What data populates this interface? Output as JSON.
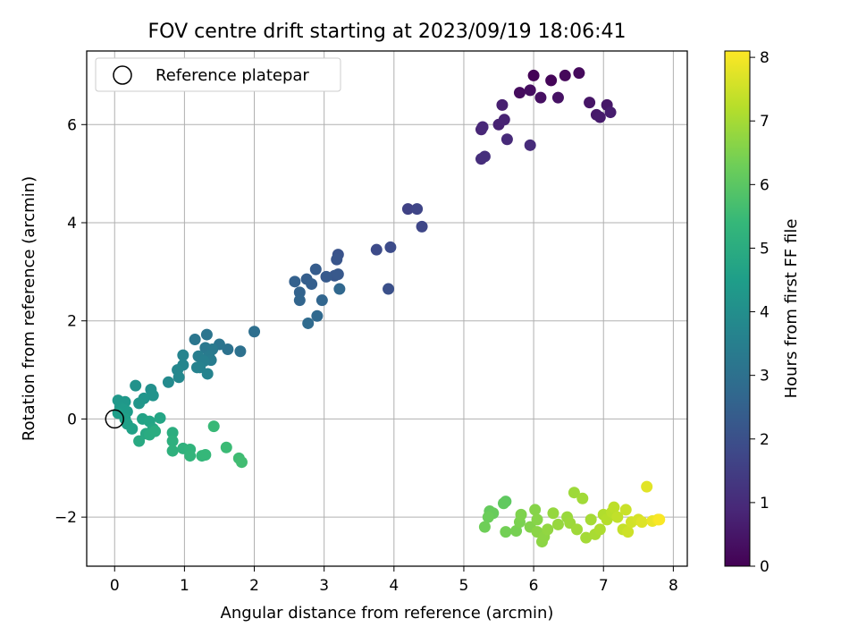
{
  "chart_data": {
    "type": "scatter",
    "title": "FOV centre drift starting at 2023/09/19 18:06:41",
    "xlabel": "Angular distance from reference (arcmin)",
    "ylabel": "Rotation from reference (arcmin)",
    "xlim": [
      -0.4,
      8.2
    ],
    "ylim": [
      -3.0,
      7.5
    ],
    "xticks": [
      "0",
      "1",
      "2",
      "3",
      "4",
      "5",
      "6",
      "7",
      "8"
    ],
    "yticks": [
      "−2",
      "0",
      "2",
      "4",
      "6"
    ],
    "grid": true,
    "legend": {
      "label": "Reference platepar",
      "placement": "top-left"
    },
    "reference_point": {
      "x": 0.0,
      "y": 0.0
    },
    "colorbar": {
      "label": "Hours from first FF file",
      "colormap": "viridis",
      "range": [
        0,
        8.1
      ],
      "ticks": [
        "0",
        "1",
        "2",
        "3",
        "4",
        "5",
        "6",
        "7",
        "8"
      ]
    },
    "colormap_stops": [
      "#440154",
      "#482878",
      "#3e4989",
      "#31688e",
      "#26828e",
      "#1f9e89",
      "#35b779",
      "#6ece58",
      "#b5de2b",
      "#fde725"
    ],
    "points": [
      {
        "x": 6.0,
        "y": 7.0,
        "c": 0.05
      },
      {
        "x": 6.25,
        "y": 6.9,
        "c": 0.1
      },
      {
        "x": 6.45,
        "y": 7.0,
        "c": 0.15
      },
      {
        "x": 6.65,
        "y": 7.05,
        "c": 0.2
      },
      {
        "x": 5.8,
        "y": 6.65,
        "c": 0.25
      },
      {
        "x": 5.95,
        "y": 6.7,
        "c": 0.3
      },
      {
        "x": 6.1,
        "y": 6.55,
        "c": 0.35
      },
      {
        "x": 6.35,
        "y": 6.55,
        "c": 0.4
      },
      {
        "x": 6.8,
        "y": 6.45,
        "c": 0.45
      },
      {
        "x": 7.05,
        "y": 6.4,
        "c": 0.5
      },
      {
        "x": 6.9,
        "y": 6.2,
        "c": 0.55
      },
      {
        "x": 6.95,
        "y": 6.15,
        "c": 0.6
      },
      {
        "x": 7.1,
        "y": 6.25,
        "c": 0.65
      },
      {
        "x": 5.55,
        "y": 6.4,
        "c": 0.7
      },
      {
        "x": 5.5,
        "y": 6.0,
        "c": 0.75
      },
      {
        "x": 5.58,
        "y": 6.1,
        "c": 0.8
      },
      {
        "x": 5.25,
        "y": 5.9,
        "c": 0.85
      },
      {
        "x": 5.27,
        "y": 5.95,
        "c": 0.9
      },
      {
        "x": 5.62,
        "y": 5.7,
        "c": 0.95
      },
      {
        "x": 5.95,
        "y": 5.58,
        "c": 1.0
      },
      {
        "x": 5.25,
        "y": 5.3,
        "c": 1.05
      },
      {
        "x": 5.3,
        "y": 5.35,
        "c": 1.1
      },
      {
        "x": 4.2,
        "y": 4.28,
        "c": 1.6
      },
      {
        "x": 4.33,
        "y": 4.28,
        "c": 1.7
      },
      {
        "x": 4.4,
        "y": 3.92,
        "c": 1.75
      },
      {
        "x": 3.75,
        "y": 3.45,
        "c": 1.85
      },
      {
        "x": 3.95,
        "y": 3.5,
        "c": 1.9
      },
      {
        "x": 3.92,
        "y": 2.65,
        "c": 2.0
      },
      {
        "x": 3.2,
        "y": 3.35,
        "c": 2.1
      },
      {
        "x": 3.18,
        "y": 3.25,
        "c": 2.15
      },
      {
        "x": 3.15,
        "y": 2.92,
        "c": 2.2
      },
      {
        "x": 3.2,
        "y": 2.95,
        "c": 2.25
      },
      {
        "x": 3.03,
        "y": 2.9,
        "c": 2.3
      },
      {
        "x": 2.88,
        "y": 3.05,
        "c": 2.35
      },
      {
        "x": 2.75,
        "y": 2.85,
        "c": 2.4
      },
      {
        "x": 2.82,
        "y": 2.75,
        "c": 2.45
      },
      {
        "x": 2.58,
        "y": 2.8,
        "c": 2.5
      },
      {
        "x": 2.65,
        "y": 2.58,
        "c": 2.55
      },
      {
        "x": 2.65,
        "y": 2.42,
        "c": 2.6
      },
      {
        "x": 2.97,
        "y": 2.42,
        "c": 2.65
      },
      {
        "x": 3.22,
        "y": 2.65,
        "c": 2.7
      },
      {
        "x": 2.9,
        "y": 2.1,
        "c": 2.75
      },
      {
        "x": 2.77,
        "y": 1.95,
        "c": 2.8
      },
      {
        "x": 2.0,
        "y": 1.78,
        "c": 2.95
      },
      {
        "x": 1.8,
        "y": 1.38,
        "c": 3.0
      },
      {
        "x": 1.62,
        "y": 1.42,
        "c": 3.05
      },
      {
        "x": 1.5,
        "y": 1.52,
        "c": 3.1
      },
      {
        "x": 1.32,
        "y": 1.72,
        "c": 3.15
      },
      {
        "x": 1.15,
        "y": 1.62,
        "c": 3.2
      },
      {
        "x": 1.3,
        "y": 1.45,
        "c": 3.25
      },
      {
        "x": 1.4,
        "y": 1.42,
        "c": 3.3
      },
      {
        "x": 1.35,
        "y": 1.28,
        "c": 3.35
      },
      {
        "x": 1.38,
        "y": 1.2,
        "c": 3.4
      },
      {
        "x": 1.2,
        "y": 1.28,
        "c": 3.45
      },
      {
        "x": 1.28,
        "y": 1.18,
        "c": 3.5
      },
      {
        "x": 1.22,
        "y": 1.05,
        "c": 3.55
      },
      {
        "x": 1.18,
        "y": 1.05,
        "c": 3.6
      },
      {
        "x": 1.33,
        "y": 0.92,
        "c": 3.62
      },
      {
        "x": 0.98,
        "y": 1.3,
        "c": 3.65
      },
      {
        "x": 0.98,
        "y": 1.1,
        "c": 3.7
      },
      {
        "x": 0.9,
        "y": 1.0,
        "c": 3.75
      },
      {
        "x": 0.92,
        "y": 0.85,
        "c": 3.8
      },
      {
        "x": 0.77,
        "y": 0.75,
        "c": 3.85
      },
      {
        "x": 0.52,
        "y": 0.6,
        "c": 4.05
      },
      {
        "x": 0.3,
        "y": 0.68,
        "c": 4.1
      },
      {
        "x": 0.55,
        "y": 0.48,
        "c": 4.15
      },
      {
        "x": 0.42,
        "y": 0.42,
        "c": 4.2
      },
      {
        "x": 0.35,
        "y": 0.32,
        "c": 4.25
      },
      {
        "x": 0.05,
        "y": 0.38,
        "c": 4.3
      },
      {
        "x": 0.15,
        "y": 0.35,
        "c": 4.32
      },
      {
        "x": 0.08,
        "y": 0.25,
        "c": 4.35
      },
      {
        "x": 0.12,
        "y": 0.2,
        "c": 4.4
      },
      {
        "x": 0.18,
        "y": 0.15,
        "c": 4.45
      },
      {
        "x": 0.05,
        "y": 0.12,
        "c": 4.5
      },
      {
        "x": 0.15,
        "y": 0.0,
        "c": 4.55
      },
      {
        "x": 0.18,
        "y": -0.1,
        "c": 4.58
      },
      {
        "x": 0.25,
        "y": -0.2,
        "c": 4.6
      },
      {
        "x": 0.4,
        "y": 0.0,
        "c": 4.65
      },
      {
        "x": 0.5,
        "y": -0.05,
        "c": 4.7
      },
      {
        "x": 0.65,
        "y": 0.02,
        "c": 4.75
      },
      {
        "x": 0.55,
        "y": -0.2,
        "c": 4.8
      },
      {
        "x": 0.45,
        "y": -0.3,
        "c": 4.85
      },
      {
        "x": 0.35,
        "y": -0.45,
        "c": 4.9
      },
      {
        "x": 0.5,
        "y": -0.32,
        "c": 4.95
      },
      {
        "x": 0.58,
        "y": -0.25,
        "c": 5.0
      },
      {
        "x": 0.83,
        "y": -0.28,
        "c": 5.05
      },
      {
        "x": 0.83,
        "y": -0.45,
        "c": 5.1
      },
      {
        "x": 0.83,
        "y": -0.65,
        "c": 5.15
      },
      {
        "x": 0.98,
        "y": -0.6,
        "c": 5.2
      },
      {
        "x": 1.08,
        "y": -0.62,
        "c": 5.25
      },
      {
        "x": 1.08,
        "y": -0.75,
        "c": 5.3
      },
      {
        "x": 1.25,
        "y": -0.75,
        "c": 5.35
      },
      {
        "x": 1.3,
        "y": -0.73,
        "c": 5.4
      },
      {
        "x": 1.42,
        "y": -0.15,
        "c": 5.45
      },
      {
        "x": 1.6,
        "y": -0.58,
        "c": 5.5
      },
      {
        "x": 1.78,
        "y": -0.8,
        "c": 5.55
      },
      {
        "x": 1.82,
        "y": -0.88,
        "c": 5.6
      },
      {
        "x": 5.6,
        "y": -1.68,
        "c": 6.05
      },
      {
        "x": 5.57,
        "y": -1.72,
        "c": 6.1
      },
      {
        "x": 5.37,
        "y": -1.88,
        "c": 6.15
      },
      {
        "x": 5.42,
        "y": -1.92,
        "c": 6.2
      },
      {
        "x": 5.35,
        "y": -2.0,
        "c": 6.25
      },
      {
        "x": 5.3,
        "y": -2.2,
        "c": 6.3
      },
      {
        "x": 5.6,
        "y": -2.3,
        "c": 6.35
      },
      {
        "x": 5.75,
        "y": -2.28,
        "c": 6.4
      },
      {
        "x": 5.8,
        "y": -2.1,
        "c": 6.45
      },
      {
        "x": 5.82,
        "y": -1.95,
        "c": 6.5
      },
      {
        "x": 5.95,
        "y": -2.2,
        "c": 6.55
      },
      {
        "x": 6.02,
        "y": -1.85,
        "c": 6.6
      },
      {
        "x": 6.05,
        "y": -2.05,
        "c": 6.62
      },
      {
        "x": 6.05,
        "y": -2.3,
        "c": 6.65
      },
      {
        "x": 6.12,
        "y": -2.5,
        "c": 6.68
      },
      {
        "x": 6.15,
        "y": -2.4,
        "c": 6.7
      },
      {
        "x": 6.2,
        "y": -2.25,
        "c": 6.75
      },
      {
        "x": 6.28,
        "y": -1.92,
        "c": 6.8
      },
      {
        "x": 6.35,
        "y": -2.15,
        "c": 6.82
      },
      {
        "x": 6.48,
        "y": -2.0,
        "c": 6.85
      },
      {
        "x": 6.52,
        "y": -2.12,
        "c": 6.88
      },
      {
        "x": 6.58,
        "y": -1.5,
        "c": 6.9
      },
      {
        "x": 6.62,
        "y": -2.25,
        "c": 6.93
      },
      {
        "x": 6.7,
        "y": -1.62,
        "c": 6.95
      },
      {
        "x": 6.75,
        "y": -2.42,
        "c": 6.98
      },
      {
        "x": 6.82,
        "y": -2.05,
        "c": 7.0
      },
      {
        "x": 6.88,
        "y": -2.35,
        "c": 7.05
      },
      {
        "x": 6.95,
        "y": -2.25,
        "c": 7.1
      },
      {
        "x": 7.0,
        "y": -1.95,
        "c": 7.15
      },
      {
        "x": 7.05,
        "y": -2.05,
        "c": 7.2
      },
      {
        "x": 7.12,
        "y": -1.9,
        "c": 7.25
      },
      {
        "x": 7.15,
        "y": -1.8,
        "c": 7.3
      },
      {
        "x": 7.2,
        "y": -2.0,
        "c": 7.35
      },
      {
        "x": 7.28,
        "y": -2.25,
        "c": 7.4
      },
      {
        "x": 7.32,
        "y": -1.85,
        "c": 7.45
      },
      {
        "x": 7.35,
        "y": -2.3,
        "c": 7.5
      },
      {
        "x": 7.4,
        "y": -2.1,
        "c": 7.55
      },
      {
        "x": 7.5,
        "y": -2.05,
        "c": 7.6
      },
      {
        "x": 7.55,
        "y": -2.1,
        "c": 7.7
      },
      {
        "x": 7.62,
        "y": -1.38,
        "c": 7.75
      },
      {
        "x": 7.7,
        "y": -2.08,
        "c": 7.85
      },
      {
        "x": 7.78,
        "y": -2.05,
        "c": 7.95
      },
      {
        "x": 7.8,
        "y": -2.05,
        "c": 8.05
      }
    ]
  }
}
